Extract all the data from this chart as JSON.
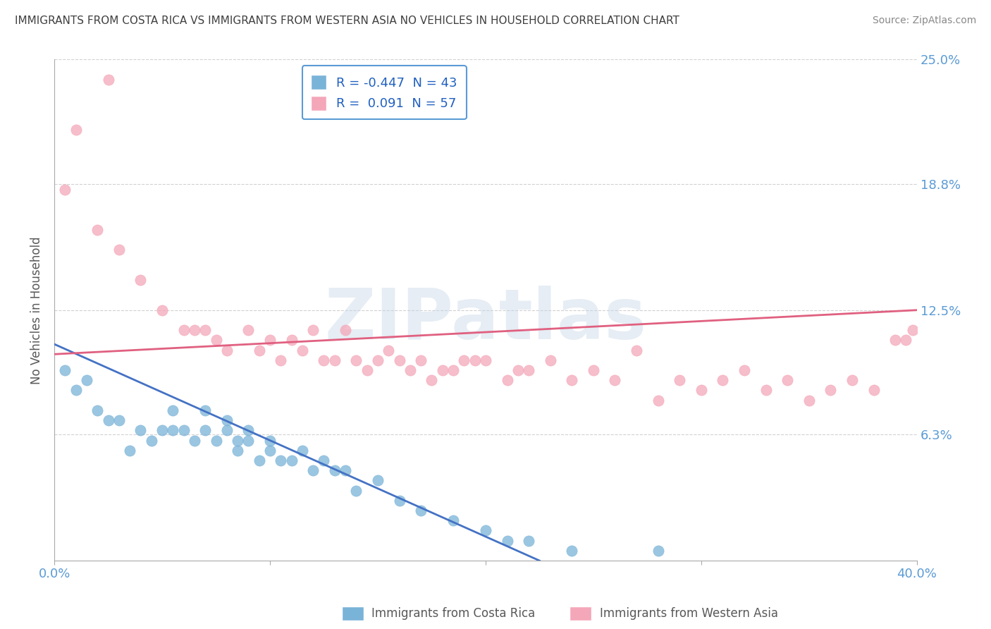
{
  "title": "IMMIGRANTS FROM COSTA RICA VS IMMIGRANTS FROM WESTERN ASIA NO VEHICLES IN HOUSEHOLD CORRELATION CHART",
  "source": "Source: ZipAtlas.com",
  "ylabel": "No Vehicles in Household",
  "xlim": [
    0.0,
    0.4
  ],
  "ylim": [
    0.0,
    0.25
  ],
  "yticks": [
    0.0,
    0.063,
    0.125,
    0.188,
    0.25
  ],
  "ytick_labels_right": [
    "",
    "6.3%",
    "12.5%",
    "18.8%",
    "25.0%"
  ],
  "xticks": [
    0.0,
    0.1,
    0.2,
    0.3,
    0.4
  ],
  "xtick_labels": [
    "0.0%",
    "",
    "",
    "",
    "40.0%"
  ],
  "series": [
    {
      "name": "Immigrants from Costa Rica",
      "color": "#7ab3d8",
      "line_color": "#4472c4",
      "R": -0.447,
      "N": 43,
      "points_x": [
        0.005,
        0.01,
        0.015,
        0.02,
        0.025,
        0.03,
        0.035,
        0.04,
        0.045,
        0.05,
        0.055,
        0.055,
        0.06,
        0.065,
        0.07,
        0.07,
        0.075,
        0.08,
        0.08,
        0.085,
        0.085,
        0.09,
        0.09,
        0.095,
        0.1,
        0.1,
        0.105,
        0.11,
        0.115,
        0.12,
        0.125,
        0.13,
        0.135,
        0.14,
        0.15,
        0.16,
        0.17,
        0.185,
        0.2,
        0.21,
        0.22,
        0.24,
        0.28
      ],
      "points_y": [
        0.095,
        0.085,
        0.09,
        0.075,
        0.07,
        0.07,
        0.055,
        0.065,
        0.06,
        0.065,
        0.075,
        0.065,
        0.065,
        0.06,
        0.075,
        0.065,
        0.06,
        0.065,
        0.07,
        0.055,
        0.06,
        0.065,
        0.06,
        0.05,
        0.055,
        0.06,
        0.05,
        0.05,
        0.055,
        0.045,
        0.05,
        0.045,
        0.045,
        0.035,
        0.04,
        0.03,
        0.025,
        0.02,
        0.015,
        0.01,
        0.01,
        0.005,
        0.005
      ],
      "line_x": [
        0.0,
        0.225
      ],
      "line_y_start": 0.108,
      "line_y_end": 0.0
    },
    {
      "name": "Immigrants from Western Asia",
      "color": "#f4a7b9",
      "line_color": "#e06080",
      "R": 0.091,
      "N": 57,
      "points_x": [
        0.005,
        0.01,
        0.02,
        0.025,
        0.03,
        0.04,
        0.05,
        0.06,
        0.065,
        0.07,
        0.075,
        0.08,
        0.09,
        0.095,
        0.1,
        0.105,
        0.11,
        0.115,
        0.12,
        0.125,
        0.13,
        0.135,
        0.14,
        0.145,
        0.15,
        0.155,
        0.16,
        0.165,
        0.17,
        0.175,
        0.18,
        0.185,
        0.19,
        0.195,
        0.2,
        0.21,
        0.215,
        0.22,
        0.23,
        0.24,
        0.25,
        0.26,
        0.27,
        0.28,
        0.29,
        0.3,
        0.31,
        0.32,
        0.33,
        0.34,
        0.35,
        0.36,
        0.37,
        0.38,
        0.39,
        0.395,
        0.398
      ],
      "points_y": [
        0.185,
        0.215,
        0.165,
        0.24,
        0.155,
        0.14,
        0.125,
        0.115,
        0.115,
        0.115,
        0.11,
        0.105,
        0.115,
        0.105,
        0.11,
        0.1,
        0.11,
        0.105,
        0.115,
        0.1,
        0.1,
        0.115,
        0.1,
        0.095,
        0.1,
        0.105,
        0.1,
        0.095,
        0.1,
        0.09,
        0.095,
        0.095,
        0.1,
        0.1,
        0.1,
        0.09,
        0.095,
        0.095,
        0.1,
        0.09,
        0.095,
        0.09,
        0.105,
        0.08,
        0.09,
        0.085,
        0.09,
        0.095,
        0.085,
        0.09,
        0.08,
        0.085,
        0.09,
        0.085,
        0.11,
        0.11,
        0.115
      ],
      "line_x": [
        0.0,
        0.4
      ],
      "line_y_start": 0.103,
      "line_y_end": 0.125
    }
  ],
  "watermark_text": "ZIPatlas",
  "background_color": "#ffffff",
  "grid_color": "#cccccc",
  "title_color": "#404040",
  "axis_label_color": "#595959",
  "tick_label_color": "#5b9bd5",
  "legend_box_color": "#5b9bd5",
  "legend_r_color": "#2060c0",
  "bottom_legend": [
    {
      "label": "Immigrants from Costa Rica",
      "color": "#7ab3d8"
    },
    {
      "label": "Immigrants from Western Asia",
      "color": "#f4a7b9"
    }
  ]
}
